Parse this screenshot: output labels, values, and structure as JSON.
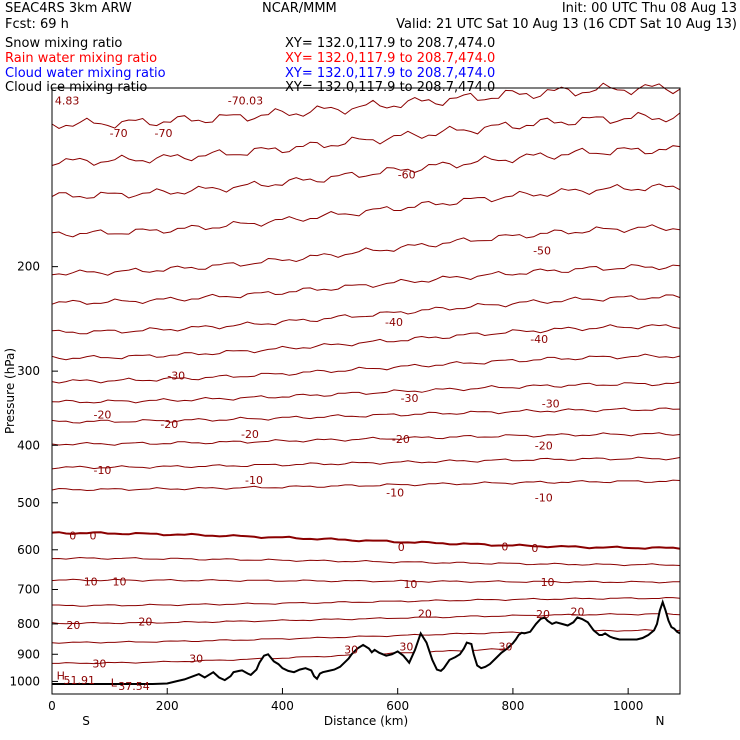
{
  "header": {
    "run": "SEAC4RS  3km ARW",
    "center": "NCAR/MMM",
    "init": "Init: 00 UTC Thu 08 Aug 13",
    "fcst": "Fcst:   69 h",
    "valid": "Valid: 21 UTC Sat 10 Aug 13 (16 CDT Sat 10 Aug 13)",
    "fields": [
      {
        "name": "Snow mixing ratio",
        "xy": "XY= 132.0,117.9 to 208.7,474.0",
        "color": "#000000"
      },
      {
        "name": "Rain water mixing ratio",
        "xy": "XY= 132.0,117.9 to 208.7,474.0",
        "color": "#ff0000"
      },
      {
        "name": "Cloud water mixing ratio",
        "xy": "XY= 132.0,117.9 to 208.7,474.0",
        "color": "#0000ff"
      },
      {
        "name": "Cloud ice mixing ratio",
        "xy": "XY= 132.0,117.9 to 208.7,474.0",
        "color": "#000000"
      }
    ]
  },
  "chart_data": {
    "type": "line",
    "xlabel": "Distance (km)",
    "ylabel": "Pressure (hPa)",
    "xlim": [
      0,
      1090
    ],
    "ylim": [
      1050,
      100
    ],
    "x_ticks": [
      0,
      200,
      400,
      600,
      800,
      1000
    ],
    "y_ticks": [
      200,
      300,
      400,
      500,
      600,
      700,
      800,
      900,
      1000
    ],
    "y_tick_labels": [
      "200",
      "300",
      "400",
      "500",
      "600",
      "700",
      "800",
      "900",
      "1000"
    ],
    "endpoint_labels": {
      "left": "S",
      "right": "N"
    },
    "contour_color": "#8b0000",
    "terrain_color": "#000000",
    "contour_levels": [
      {
        "level": -70,
        "p_start": 115,
        "p_end": 100,
        "bold": false
      },
      {
        "level": -65,
        "p_start": 133,
        "p_end": 112,
        "bold": false
      },
      {
        "level": -60,
        "p_start": 152,
        "p_end": 127,
        "bold": false
      },
      {
        "level": -55,
        "p_start": 176,
        "p_end": 147,
        "bold": false
      },
      {
        "level": -50,
        "p_start": 205,
        "p_end": 172,
        "bold": false
      },
      {
        "level": -45,
        "p_start": 230,
        "p_end": 200,
        "bold": false
      },
      {
        "level": -40,
        "p_start": 258,
        "p_end": 225,
        "bold": false
      },
      {
        "level": -35,
        "p_start": 285,
        "p_end": 252,
        "bold": false
      },
      {
        "level": -30,
        "p_start": 312,
        "p_end": 283,
        "bold": false
      },
      {
        "level": -25,
        "p_start": 338,
        "p_end": 315,
        "bold": false
      },
      {
        "level": -20,
        "p_start": 365,
        "p_end": 348,
        "bold": false
      },
      {
        "level": -15,
        "p_start": 398,
        "p_end": 383,
        "bold": false
      },
      {
        "level": -10,
        "p_start": 436,
        "p_end": 421,
        "bold": false
      },
      {
        "level": -5,
        "p_start": 475,
        "p_end": 460,
        "bold": false
      },
      {
        "level": 0,
        "p_start": 562,
        "p_end": 596,
        "bold": true
      },
      {
        "level": 5,
        "p_start": 620,
        "p_end": 636,
        "bold": false
      },
      {
        "level": 10,
        "p_start": 675,
        "p_end": 680,
        "bold": false
      },
      {
        "level": 15,
        "p_start": 745,
        "p_end": 724,
        "bold": false
      },
      {
        "level": 20,
        "p_start": 798,
        "p_end": 770,
        "bold": false
      },
      {
        "level": 25,
        "p_start": 860,
        "p_end": 820,
        "bold": false
      },
      {
        "level": 30,
        "p_start": 932,
        "p_end": 870,
        "bold": false
      }
    ],
    "contour_labels": [
      {
        "text": "4.83",
        "x": 5,
        "p": 105
      },
      {
        "text": "-70",
        "x": 100,
        "p": 119
      },
      {
        "text": "-70",
        "x": 178,
        "p": 119
      },
      {
        "text": "-70.03",
        "x": 305,
        "p": 105
      },
      {
        "text": "-60",
        "x": 600,
        "p": 140
      },
      {
        "text": "-50",
        "x": 835,
        "p": 188
      },
      {
        "text": "-40",
        "x": 578,
        "p": 248
      },
      {
        "text": "-40",
        "x": 830,
        "p": 265
      },
      {
        "text": "-30",
        "x": 200,
        "p": 305
      },
      {
        "text": "-30",
        "x": 605,
        "p": 333
      },
      {
        "text": "-30",
        "x": 850,
        "p": 340
      },
      {
        "text": "-20",
        "x": 72,
        "p": 355
      },
      {
        "text": "-20",
        "x": 188,
        "p": 368
      },
      {
        "text": "-20",
        "x": 328,
        "p": 383
      },
      {
        "text": "-20",
        "x": 590,
        "p": 390
      },
      {
        "text": "-20",
        "x": 838,
        "p": 400
      },
      {
        "text": "-10",
        "x": 72,
        "p": 440
      },
      {
        "text": "-10",
        "x": 335,
        "p": 458
      },
      {
        "text": "-10",
        "x": 580,
        "p": 480
      },
      {
        "text": "-10",
        "x": 838,
        "p": 490
      },
      {
        "text": "0",
        "x": 30,
        "p": 568
      },
      {
        "text": "0",
        "x": 65,
        "p": 568
      },
      {
        "text": "0",
        "x": 600,
        "p": 593
      },
      {
        "text": "0",
        "x": 780,
        "p": 592
      },
      {
        "text": "0",
        "x": 832,
        "p": 596
      },
      {
        "text": "10",
        "x": 55,
        "p": 678
      },
      {
        "text": "10",
        "x": 105,
        "p": 678
      },
      {
        "text": "10",
        "x": 610,
        "p": 685
      },
      {
        "text": "10",
        "x": 848,
        "p": 680
      },
      {
        "text": "20",
        "x": 25,
        "p": 803
      },
      {
        "text": "20",
        "x": 150,
        "p": 793
      },
      {
        "text": "20",
        "x": 635,
        "p": 768
      },
      {
        "text": "20",
        "x": 840,
        "p": 770
      },
      {
        "text": "20",
        "x": 900,
        "p": 762
      },
      {
        "text": "30",
        "x": 70,
        "p": 933
      },
      {
        "text": "30",
        "x": 238,
        "p": 915
      },
      {
        "text": "30",
        "x": 507,
        "p": 883
      },
      {
        "text": "30",
        "x": 603,
        "p": 873
      },
      {
        "text": "30",
        "x": 775,
        "p": 873
      },
      {
        "text": "H",
        "x": 8,
        "p": 978
      },
      {
        "text": "51.91",
        "x": 20,
        "p": 995
      },
      {
        "text": "L",
        "x": 102,
        "p": 1005
      },
      {
        "text": "37.54",
        "x": 115,
        "p": 1018
      }
    ],
    "terrain": {
      "x": [
        0,
        100,
        175,
        200,
        215,
        230,
        245,
        255,
        265,
        280,
        290,
        300,
        310,
        315,
        325,
        330,
        340,
        345,
        355,
        360,
        368,
        375,
        385,
        393,
        400,
        410,
        420,
        430,
        440,
        450,
        455,
        460,
        465,
        470,
        480,
        490,
        500,
        510,
        515,
        520,
        530,
        540,
        550,
        555,
        560,
        568,
        580,
        590,
        600,
        610,
        620,
        630,
        640,
        645,
        650,
        660,
        668,
        675,
        680,
        690,
        700,
        708,
        715,
        720,
        728,
        732,
        738,
        745,
        752,
        760,
        770,
        780,
        790,
        800,
        805,
        810,
        815,
        820,
        830,
        840,
        848,
        855,
        860,
        868,
        875,
        885,
        895,
        905,
        912,
        920,
        930,
        940,
        950,
        955,
        960,
        968,
        975,
        985,
        995,
        1005,
        1015,
        1025,
        1035,
        1045,
        1050,
        1055,
        1060,
        1065,
        1070,
        1075,
        1080,
        1085,
        1090
      ],
      "p": [
        1010,
        1010,
        1010,
        1008,
        1000,
        992,
        980,
        972,
        985,
        965,
        985,
        995,
        980,
        965,
        960,
        958,
        970,
        975,
        955,
        930,
        905,
        900,
        925,
        935,
        950,
        960,
        965,
        955,
        950,
        958,
        980,
        990,
        970,
        965,
        960,
        955,
        945,
        925,
        915,
        900,
        880,
        868,
        880,
        893,
        885,
        895,
        905,
        900,
        890,
        905,
        930,
        885,
        830,
        845,
        860,
        920,
        955,
        960,
        950,
        920,
        910,
        900,
        880,
        860,
        865,
        900,
        940,
        950,
        945,
        935,
        915,
        895,
        880,
        862,
        850,
        835,
        828,
        830,
        825,
        800,
        785,
        780,
        790,
        800,
        795,
        800,
        805,
        795,
        780,
        785,
        795,
        820,
        835,
        835,
        830,
        840,
        845,
        850,
        850,
        850,
        850,
        845,
        835,
        820,
        800,
        760,
        735,
        760,
        790,
        810,
        815,
        825,
        830
      ]
    }
  }
}
